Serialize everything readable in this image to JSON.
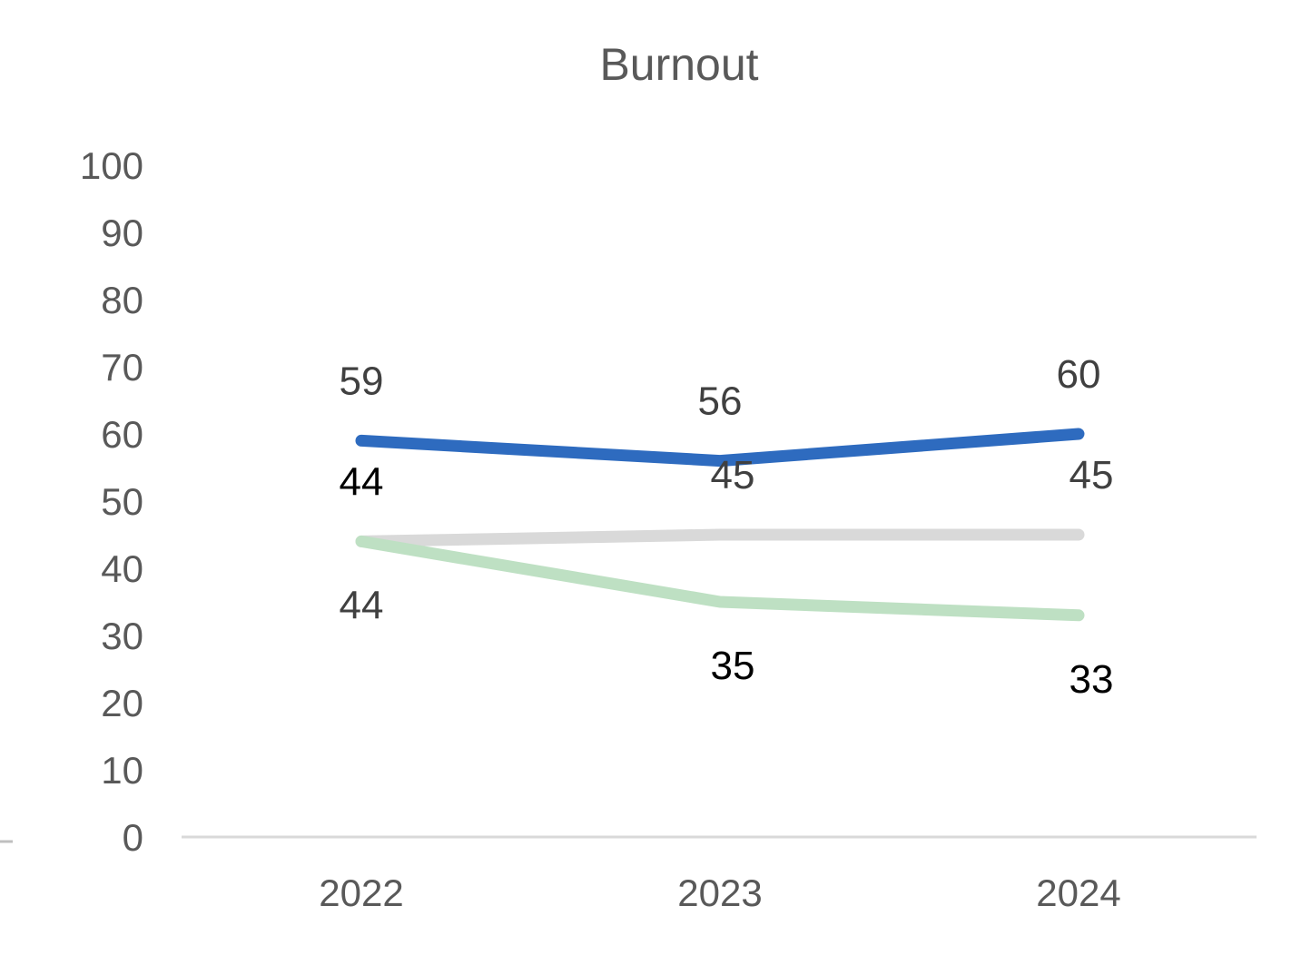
{
  "chart_data": {
    "type": "line",
    "title": "Burnout",
    "xlabel": "",
    "ylabel": "",
    "categories": [
      "2022",
      "2023",
      "2024"
    ],
    "ylim": [
      0,
      100
    ],
    "yticks": [
      "0",
      "10",
      "20",
      "30",
      "40",
      "50",
      "60",
      "70",
      "80",
      "90",
      "100"
    ],
    "grid": false,
    "legend": "none",
    "series": [
      {
        "values": [
          59,
          56,
          60
        ],
        "labels": [
          "59",
          "56",
          "60"
        ],
        "color": "#2E6BBF",
        "label_color": "#404040",
        "label_positions": [
          "above",
          "above",
          "above"
        ]
      },
      {
        "values": [
          44,
          45,
          45
        ],
        "labels": [
          "44",
          "45",
          "45"
        ],
        "color": "#D9D9D9",
        "label_color": "#404040",
        "label_positions": [
          "below",
          "above",
          "above"
        ]
      },
      {
        "values": [
          44,
          35,
          33
        ],
        "labels": [
          "44",
          "35",
          "33"
        ],
        "color": "#BEE0C3",
        "label_color": "#000000",
        "label_positions": [
          "above",
          "below",
          "below"
        ]
      }
    ]
  }
}
